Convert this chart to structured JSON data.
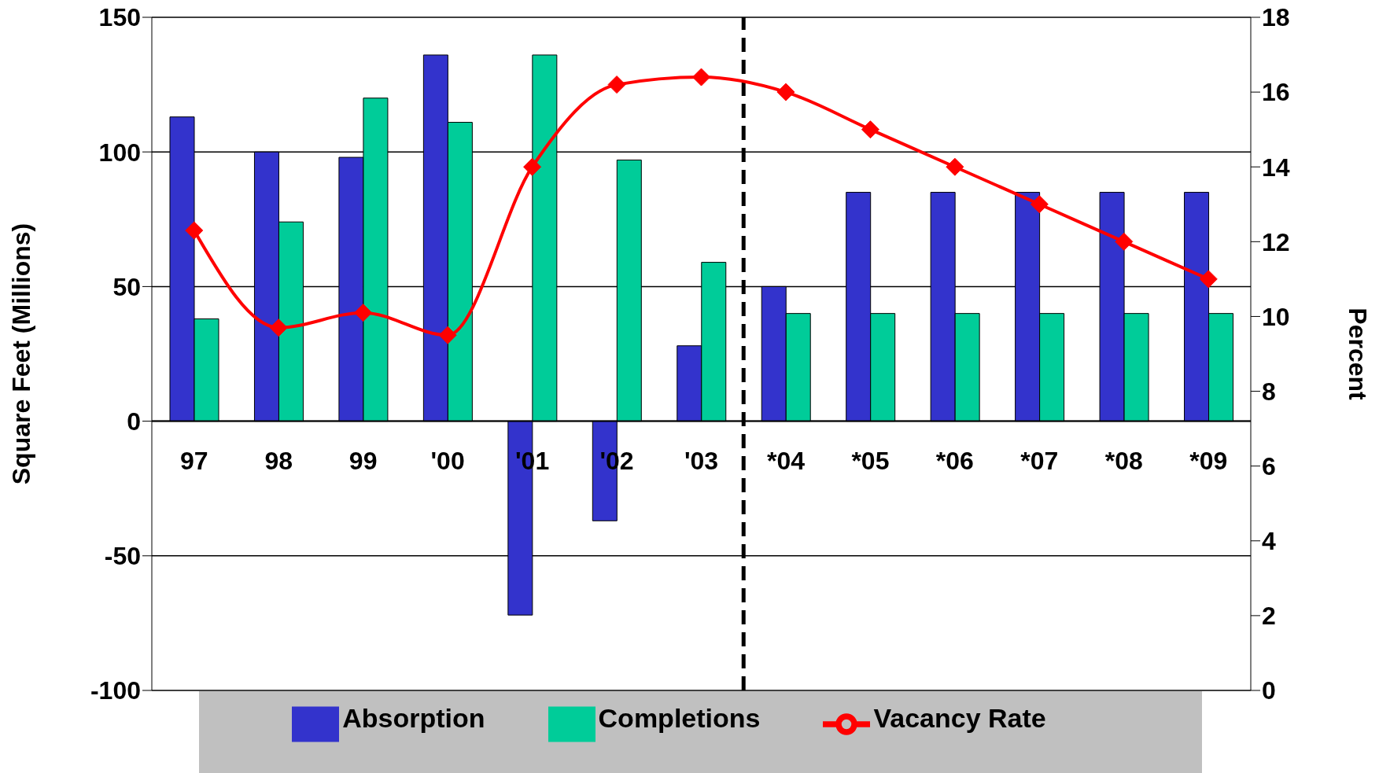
{
  "chart_data": {
    "type": "bar",
    "categories": [
      "97",
      "98",
      "99",
      "'00",
      "'01",
      "'02",
      "'03",
      "*04",
      "*05",
      "*06",
      "*07",
      "*08",
      "*09"
    ],
    "series": [
      {
        "name": "Absorption",
        "color": "#3333cc",
        "values": [
          113,
          100,
          98,
          136,
          -72,
          -37,
          28,
          50,
          85,
          85,
          85,
          85,
          85
        ]
      },
      {
        "name": "Completions",
        "color": "#00cc99",
        "values": [
          38,
          74,
          120,
          111,
          136,
          97,
          59,
          40,
          40,
          40,
          40,
          40,
          40
        ]
      },
      {
        "name": "Vacancy Rate",
        "type": "line",
        "axis": "y2",
        "color": "#ff0000",
        "marker": "diamond",
        "values": [
          12.3,
          9.7,
          10.1,
          9.5,
          14.0,
          16.2,
          16.4,
          16.0,
          15.0,
          14.0,
          13.0,
          12.0,
          11.0
        ]
      }
    ],
    "ylabel": "Square Feet (Millions)",
    "y2label": "Percent",
    "ylim": [
      -100,
      150
    ],
    "yticks": [
      -100,
      -50,
      0,
      50,
      100,
      150
    ],
    "y2lim": [
      0,
      18
    ],
    "y2ticks": [
      0,
      2,
      4,
      6,
      8,
      10,
      12,
      14,
      16,
      18
    ],
    "ref_lines": [
      {
        "axis": "x",
        "value": "*04",
        "line_style": "dashed",
        "color": "#000000"
      }
    ],
    "grid": "y",
    "legend": "bottom"
  }
}
